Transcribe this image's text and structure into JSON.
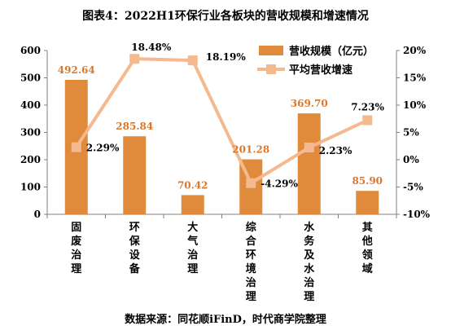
{
  "chart_data": {
    "type": "bar",
    "title": "图表4：2022H1环保行业各板块的营收规模和增速情况",
    "source": "数据来源：同花顺iFinD，时代商学院整理",
    "categories": [
      "固废治理",
      "环保设备",
      "大气治理",
      "综合环境治理",
      "水务及水治理",
      "其他领域"
    ],
    "series": [
      {
        "name": "营收规模（亿元）",
        "type": "bar",
        "axis": "left",
        "values": [
          492.64,
          285.84,
          70.42,
          201.28,
          369.7,
          85.9
        ],
        "labels": [
          "492.64",
          "285.84",
          "70.42",
          "201.28",
          "369.70",
          "85.90"
        ]
      },
      {
        "name": "平均营收增速",
        "type": "line",
        "axis": "right",
        "values": [
          2.29,
          18.48,
          18.19,
          -4.29,
          2.23,
          7.23
        ],
        "labels": [
          "2.29%",
          "18.48%",
          "18.19%",
          "-4.29%",
          "2.23%",
          "7.23%"
        ]
      }
    ],
    "ylim": [
      0,
      600
    ],
    "y_ticks": [
      "0",
      "100",
      "200",
      "300",
      "400",
      "500",
      "600"
    ],
    "y2lim": [
      -10,
      20
    ],
    "y2_ticks": [
      "-10%",
      "-5%",
      "0%",
      "5%",
      "10%",
      "15%",
      "20%"
    ],
    "grid": false,
    "legend_position": "top-right",
    "colors": {
      "bar": "#E08A3C",
      "line": "#F5B98F",
      "bar_label": "#D9772C",
      "text": "#000000",
      "axis": "#808080"
    }
  }
}
